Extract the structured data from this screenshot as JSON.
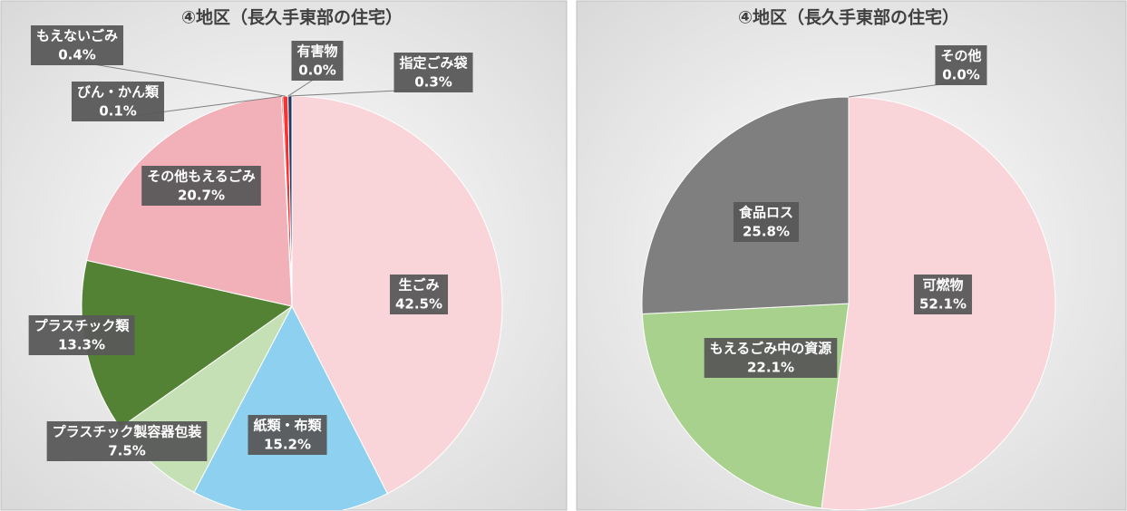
{
  "chart_data": [
    {
      "type": "pie",
      "title": "④地区（長久手東部の住宅）",
      "categories": [
        "生ごみ",
        "紙類・布類",
        "プラスチック製容器包装",
        "プラスチック類",
        "その他もえるごみ",
        "びん・かん類",
        "もえないごみ",
        "有害物",
        "指定ごみ袋"
      ],
      "values": [
        42.5,
        15.2,
        7.5,
        13.3,
        20.7,
        0.1,
        0.4,
        0.0,
        0.3
      ],
      "value_labels": [
        "42.5%",
        "15.2%",
        "7.5%",
        "13.3%",
        "20.7%",
        "0.1%",
        "0.4%",
        "0.0%",
        "0.3%"
      ],
      "colors": [
        "#f9d5da",
        "#8dd0f0",
        "#c5e0b4",
        "#548235",
        "#f2b1b8",
        "#c00000",
        "#ff3030",
        "#7030a0",
        "#203864"
      ]
    },
    {
      "type": "pie",
      "title": "④地区（長久手東部の住宅）",
      "categories": [
        "可燃物",
        "もえるごみ中の資源",
        "食品ロス",
        "その他"
      ],
      "values": [
        52.1,
        22.1,
        25.8,
        0.0
      ],
      "value_labels": [
        "52.1%",
        "22.1%",
        "25.8%",
        "0.0%"
      ],
      "colors": [
        "#f9d5da",
        "#a9d18e",
        "#7f7f7f",
        "#404040"
      ]
    }
  ]
}
